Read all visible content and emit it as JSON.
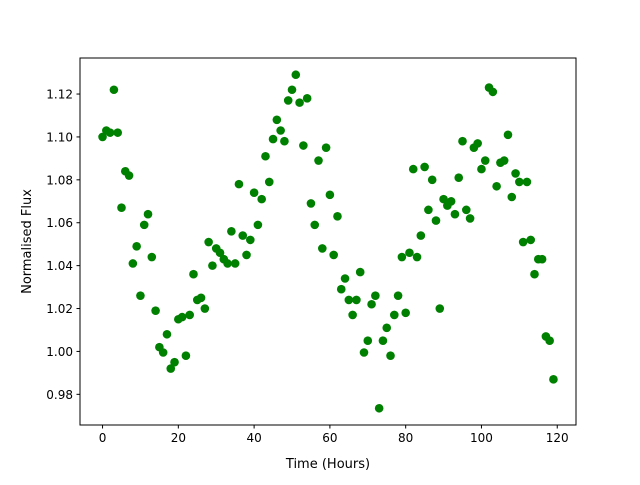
{
  "chart_data": {
    "type": "scatter",
    "title": "",
    "xlabel": "Time (Hours)",
    "ylabel": "Normalised Flux",
    "xlim": [
      -5.95,
      124.95
    ],
    "ylim": [
      0.9657,
      1.1368
    ],
    "xticks": [
      0,
      20,
      40,
      60,
      80,
      100,
      120
    ],
    "xtick_labels": [
      "0",
      "20",
      "40",
      "60",
      "80",
      "100",
      "120"
    ],
    "yticks": [
      0.98,
      1.0,
      1.02,
      1.04,
      1.06,
      1.08,
      1.1,
      1.12
    ],
    "ytick_labels": [
      "0.98",
      "1.00",
      "1.02",
      "1.04",
      "1.06",
      "1.08",
      "1.10",
      "1.12"
    ],
    "grid": false,
    "marker_color": "#008000",
    "x": [
      0,
      1,
      2,
      3,
      4,
      5,
      6,
      7,
      8,
      9,
      10,
      11,
      12,
      13,
      14,
      15,
      16,
      17,
      18,
      19,
      20,
      21,
      22,
      23,
      24,
      25,
      26,
      27,
      28,
      29,
      30,
      31,
      32,
      33,
      34,
      35,
      36,
      37,
      38,
      39,
      40,
      41,
      42,
      43,
      44,
      45,
      46,
      47,
      48,
      49,
      50,
      51,
      52,
      53,
      54,
      55,
      56,
      57,
      58,
      59,
      60,
      61,
      62,
      63,
      64,
      65,
      66,
      67,
      68,
      69,
      70,
      71,
      72,
      73,
      74,
      75,
      76,
      77,
      78,
      79,
      80,
      81,
      82,
      83,
      84,
      85,
      86,
      87,
      88,
      89,
      90,
      91,
      92,
      93,
      94,
      95,
      96,
      97,
      98,
      99,
      100,
      101,
      102,
      103,
      104,
      105,
      106,
      107,
      108,
      109,
      110,
      111,
      112,
      113,
      114,
      115,
      116,
      117,
      118,
      119
    ],
    "y": [
      1.1,
      1.103,
      1.102,
      1.122,
      1.102,
      1.067,
      1.084,
      1.082,
      1.041,
      1.049,
      1.026,
      1.059,
      1.064,
      1.044,
      1.019,
      1.002,
      0.9995,
      1.008,
      0.992,
      0.995,
      1.015,
      1.016,
      0.998,
      1.017,
      1.036,
      1.024,
      1.025,
      1.02,
      1.051,
      1.04,
      1.048,
      1.046,
      1.043,
      1.041,
      1.056,
      1.041,
      1.078,
      1.054,
      1.045,
      1.052,
      1.074,
      1.059,
      1.071,
      1.091,
      1.079,
      1.099,
      1.108,
      1.103,
      1.098,
      1.117,
      1.122,
      1.129,
      1.116,
      1.096,
      1.118,
      1.069,
      1.059,
      1.089,
      1.048,
      1.095,
      1.073,
      1.045,
      1.063,
      1.029,
      1.034,
      1.024,
      1.017,
      1.024,
      1.037,
      0.9995,
      1.005,
      1.022,
      1.026,
      0.9735,
      1.005,
      1.011,
      0.998,
      1.017,
      1.026,
      1.044,
      1.018,
      1.046,
      1.085,
      1.044,
      1.054,
      1.086,
      1.066,
      1.08,
      1.061,
      1.02,
      1.071,
      1.068,
      1.07,
      1.064,
      1.081,
      1.098,
      1.066,
      1.062,
      1.095,
      1.097,
      1.085,
      1.089,
      1.123,
      1.121,
      1.077,
      1.088,
      1.089,
      1.101,
      1.072,
      1.083,
      1.079,
      1.051,
      1.079,
      1.052,
      1.036,
      1.043,
      1.043,
      1.007,
      1.005,
      0.987
    ]
  }
}
